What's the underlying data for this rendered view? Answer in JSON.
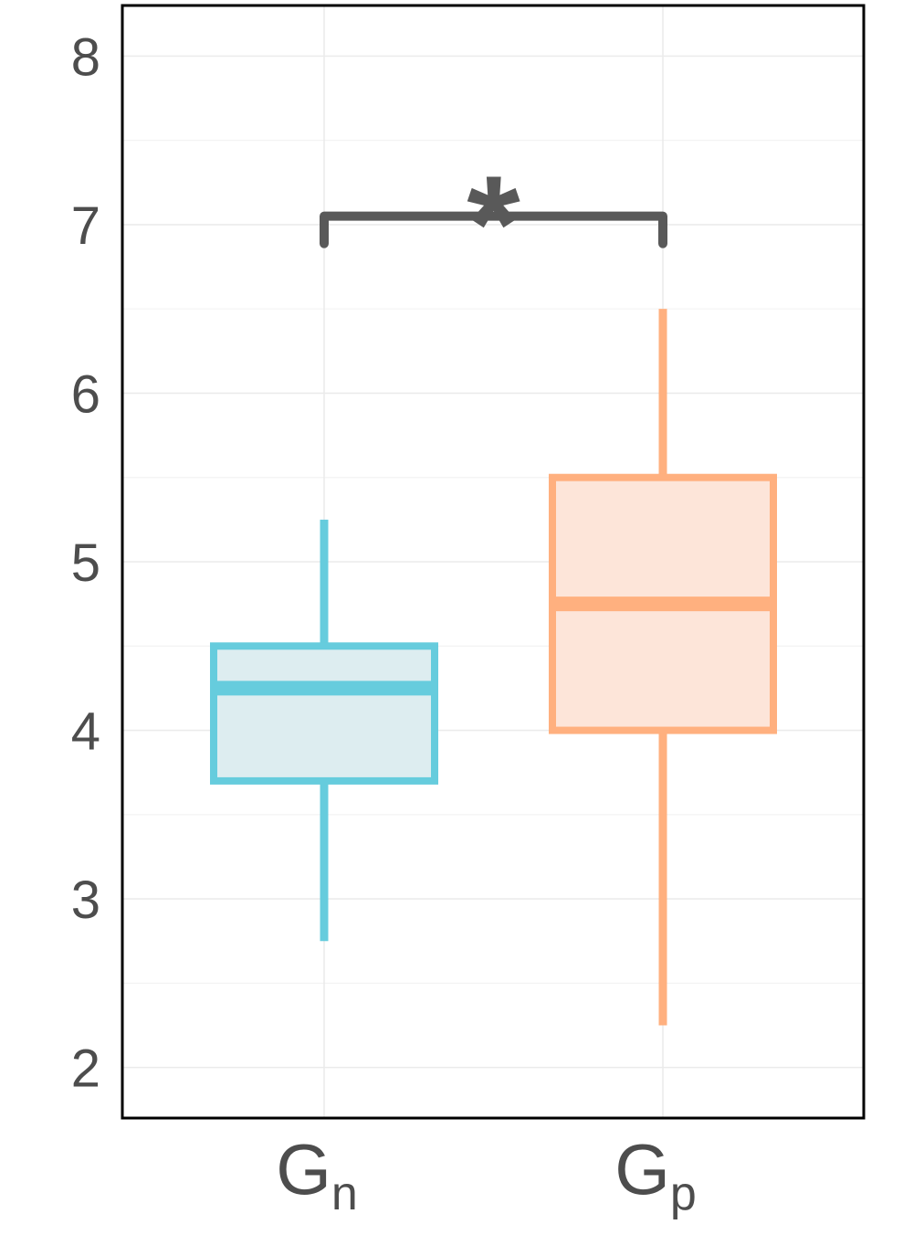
{
  "chart_data": {
    "type": "box",
    "title": "",
    "xlabel": "",
    "ylabel": "",
    "ylim": [
      1.7,
      8.3
    ],
    "yticks": [
      2,
      3,
      4,
      5,
      6,
      7,
      8
    ],
    "grid": true,
    "categories": [
      {
        "base": "G",
        "sub": "n"
      },
      {
        "base": "G",
        "sub": "p"
      }
    ],
    "series": [
      {
        "category": "Gn",
        "color": "#66CCDD",
        "fill": "#DDEDF0",
        "min": 2.75,
        "q1": 3.7,
        "median": 4.25,
        "q3": 4.5,
        "max": 5.25
      },
      {
        "category": "Gp",
        "color": "#FFB07F",
        "fill": "#FDE5D9",
        "min": 2.25,
        "q1": 4.0,
        "median": 4.75,
        "q3": 5.5,
        "max": 6.5
      }
    ],
    "annotations": [
      {
        "type": "significance-bracket",
        "from": 0,
        "to": 1,
        "y": 7.05,
        "label": "*",
        "color": "#595959"
      }
    ]
  }
}
